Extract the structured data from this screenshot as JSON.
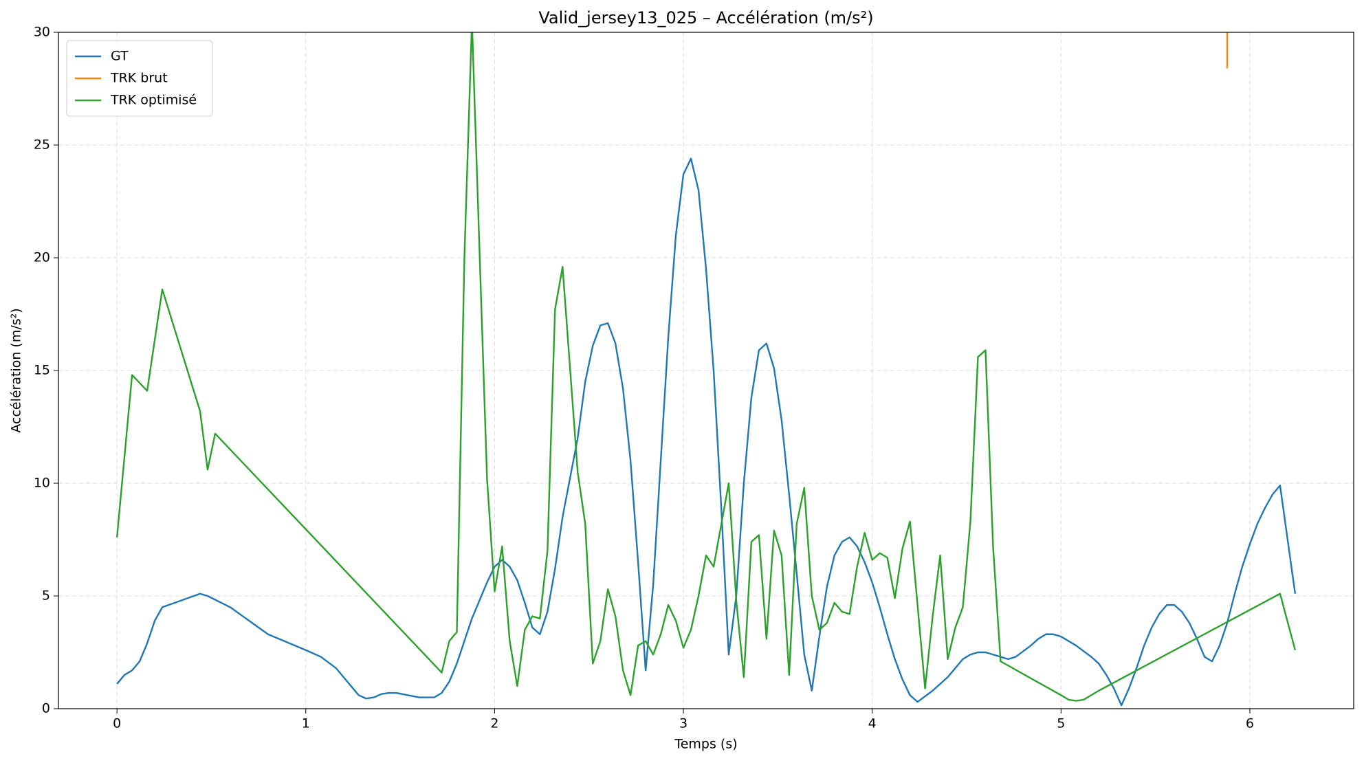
{
  "chart_data": {
    "type": "line",
    "title": "Valid_jersey13_025 – Accélération (m/s²)",
    "x_label": "Temps (s)",
    "y_label": "Accélération (m/s²)",
    "xlim": [
      -0.31,
      6.55
    ],
    "ylim": [
      0,
      30
    ],
    "xticks": [
      0,
      1,
      2,
      3,
      4,
      5,
      6
    ],
    "yticks": [
      0,
      5,
      10,
      15,
      20,
      25,
      30
    ],
    "grid": true,
    "legend": "upper left",
    "series": [
      {
        "name": "GT",
        "color": "#1f77b4",
        "x": [
          0,
          0.04,
          0.08,
          0.12,
          0.16,
          0.2,
          0.24,
          0.44,
          0.48,
          0.6,
          0.8,
          1.0,
          1.08,
          1.16,
          1.24,
          1.28,
          1.32,
          1.36,
          1.4,
          1.44,
          1.48,
          1.6,
          1.68,
          1.72,
          1.76,
          1.8,
          1.88,
          1.96,
          2.0,
          2.04,
          2.08,
          2.12,
          2.16,
          2.2,
          2.24,
          2.28,
          2.32,
          2.36,
          2.44,
          2.48,
          2.52,
          2.56,
          2.6,
          2.64,
          2.68,
          2.72,
          2.76,
          2.8,
          2.84,
          2.88,
          2.92,
          2.96,
          3.0,
          3.04,
          3.08,
          3.12,
          3.16,
          3.2,
          3.24,
          3.28,
          3.32,
          3.36,
          3.4,
          3.44,
          3.48,
          3.52,
          3.56,
          3.6,
          3.64,
          3.68,
          3.72,
          3.76,
          3.8,
          3.84,
          3.88,
          3.92,
          3.96,
          4.0,
          4.04,
          4.08,
          4.12,
          4.16,
          4.2,
          4.24,
          4.32,
          4.4,
          4.48,
          4.52,
          4.56,
          4.6,
          4.64,
          4.68,
          4.72,
          4.76,
          4.84,
          4.88,
          4.92,
          4.96,
          5.0,
          5.08,
          5.16,
          5.2,
          5.24,
          5.28,
          5.32,
          5.36,
          5.4,
          5.44,
          5.48,
          5.52,
          5.56,
          5.6,
          5.64,
          5.68,
          5.72,
          5.76,
          5.8,
          5.84,
          5.88,
          5.92,
          5.96,
          6.0,
          6.04,
          6.08,
          6.12,
          6.16,
          6.2,
          6.24
        ],
        "values": [
          1.1,
          1.5,
          1.7,
          2.1,
          2.9,
          3.9,
          4.5,
          5.1,
          5.0,
          4.5,
          3.3,
          2.6,
          2.3,
          1.8,
          1.0,
          0.6,
          0.45,
          0.5,
          0.65,
          0.7,
          0.7,
          0.5,
          0.5,
          0.7,
          1.2,
          2.0,
          4.0,
          5.6,
          6.3,
          6.6,
          6.3,
          5.7,
          4.7,
          3.6,
          3.3,
          4.3,
          6.2,
          8.5,
          12.0,
          14.5,
          16.1,
          17.0,
          17.1,
          16.2,
          14.2,
          11.0,
          6.5,
          1.7,
          5.5,
          11.0,
          16.5,
          21.0,
          23.7,
          24.4,
          23.0,
          19.5,
          15.0,
          9.0,
          2.4,
          5.0,
          10.0,
          13.8,
          15.9,
          16.2,
          15.1,
          12.8,
          9.5,
          6.0,
          2.4,
          0.8,
          3.2,
          5.4,
          6.8,
          7.4,
          7.6,
          7.2,
          6.5,
          5.6,
          4.5,
          3.3,
          2.2,
          1.3,
          0.6,
          0.3,
          0.8,
          1.4,
          2.2,
          2.4,
          2.5,
          2.5,
          2.4,
          2.3,
          2.2,
          2.3,
          2.8,
          3.1,
          3.3,
          3.3,
          3.2,
          2.8,
          2.3,
          2.0,
          1.5,
          0.9,
          0.15,
          0.9,
          1.8,
          2.8,
          3.6,
          4.2,
          4.6,
          4.6,
          4.3,
          3.8,
          3.1,
          2.3,
          2.1,
          2.8,
          3.8,
          5.1,
          6.3,
          7.3,
          8.2,
          8.9,
          9.5,
          9.9,
          7.5,
          5.1
        ]
      },
      {
        "name": "TRK brut",
        "color": "#ff7f0e",
        "x": [
          5.88,
          5.88
        ],
        "values": [
          28.4,
          31
        ]
      },
      {
        "name": "TRK optimisé",
        "color": "#2ca02c",
        "x": [
          0,
          0.08,
          0.16,
          0.24,
          0.44,
          0.48,
          0.52,
          1.72,
          1.76,
          1.8,
          1.84,
          1.88,
          1.96,
          2.0,
          2.04,
          2.08,
          2.12,
          2.16,
          2.2,
          2.24,
          2.28,
          2.32,
          2.36,
          2.44,
          2.48,
          2.52,
          2.56,
          2.6,
          2.64,
          2.68,
          2.72,
          2.76,
          2.8,
          2.84,
          2.88,
          2.92,
          2.96,
          3.0,
          3.04,
          3.08,
          3.12,
          3.16,
          3.24,
          3.28,
          3.32,
          3.36,
          3.4,
          3.44,
          3.48,
          3.52,
          3.56,
          3.6,
          3.64,
          3.68,
          3.72,
          3.76,
          3.8,
          3.84,
          3.88,
          3.92,
          3.96,
          4.0,
          4.04,
          4.08,
          4.12,
          4.16,
          4.2,
          4.28,
          4.32,
          4.36,
          4.4,
          4.44,
          4.48,
          4.52,
          4.56,
          4.6,
          4.64,
          4.68,
          5.0,
          5.04,
          5.08,
          5.12,
          5.2,
          6.16,
          6.24
        ],
        "values": [
          7.6,
          14.8,
          14.1,
          18.6,
          13.2,
          10.6,
          12.2,
          1.6,
          3.0,
          3.4,
          20.0,
          30.5,
          10.2,
          5.2,
          7.2,
          3.0,
          1.0,
          3.5,
          4.1,
          4.0,
          7.0,
          17.7,
          19.6,
          10.5,
          8.2,
          2.0,
          3.0,
          5.3,
          4.1,
          1.7,
          0.6,
          2.8,
          3.0,
          2.4,
          3.3,
          4.6,
          3.9,
          2.7,
          3.5,
          5.0,
          6.8,
          6.3,
          10.0,
          4.8,
          1.4,
          7.4,
          7.7,
          3.1,
          7.9,
          6.8,
          1.5,
          8.2,
          9.8,
          5.0,
          3.5,
          3.8,
          4.7,
          4.3,
          4.2,
          6.3,
          7.8,
          6.6,
          6.9,
          6.7,
          4.9,
          7.1,
          8.3,
          0.9,
          4.1,
          6.8,
          2.2,
          3.6,
          4.5,
          8.3,
          15.6,
          15.9,
          7.2,
          2.1,
          0.6,
          0.4,
          0.35,
          0.4,
          0.8,
          5.1,
          2.6
        ]
      }
    ]
  }
}
